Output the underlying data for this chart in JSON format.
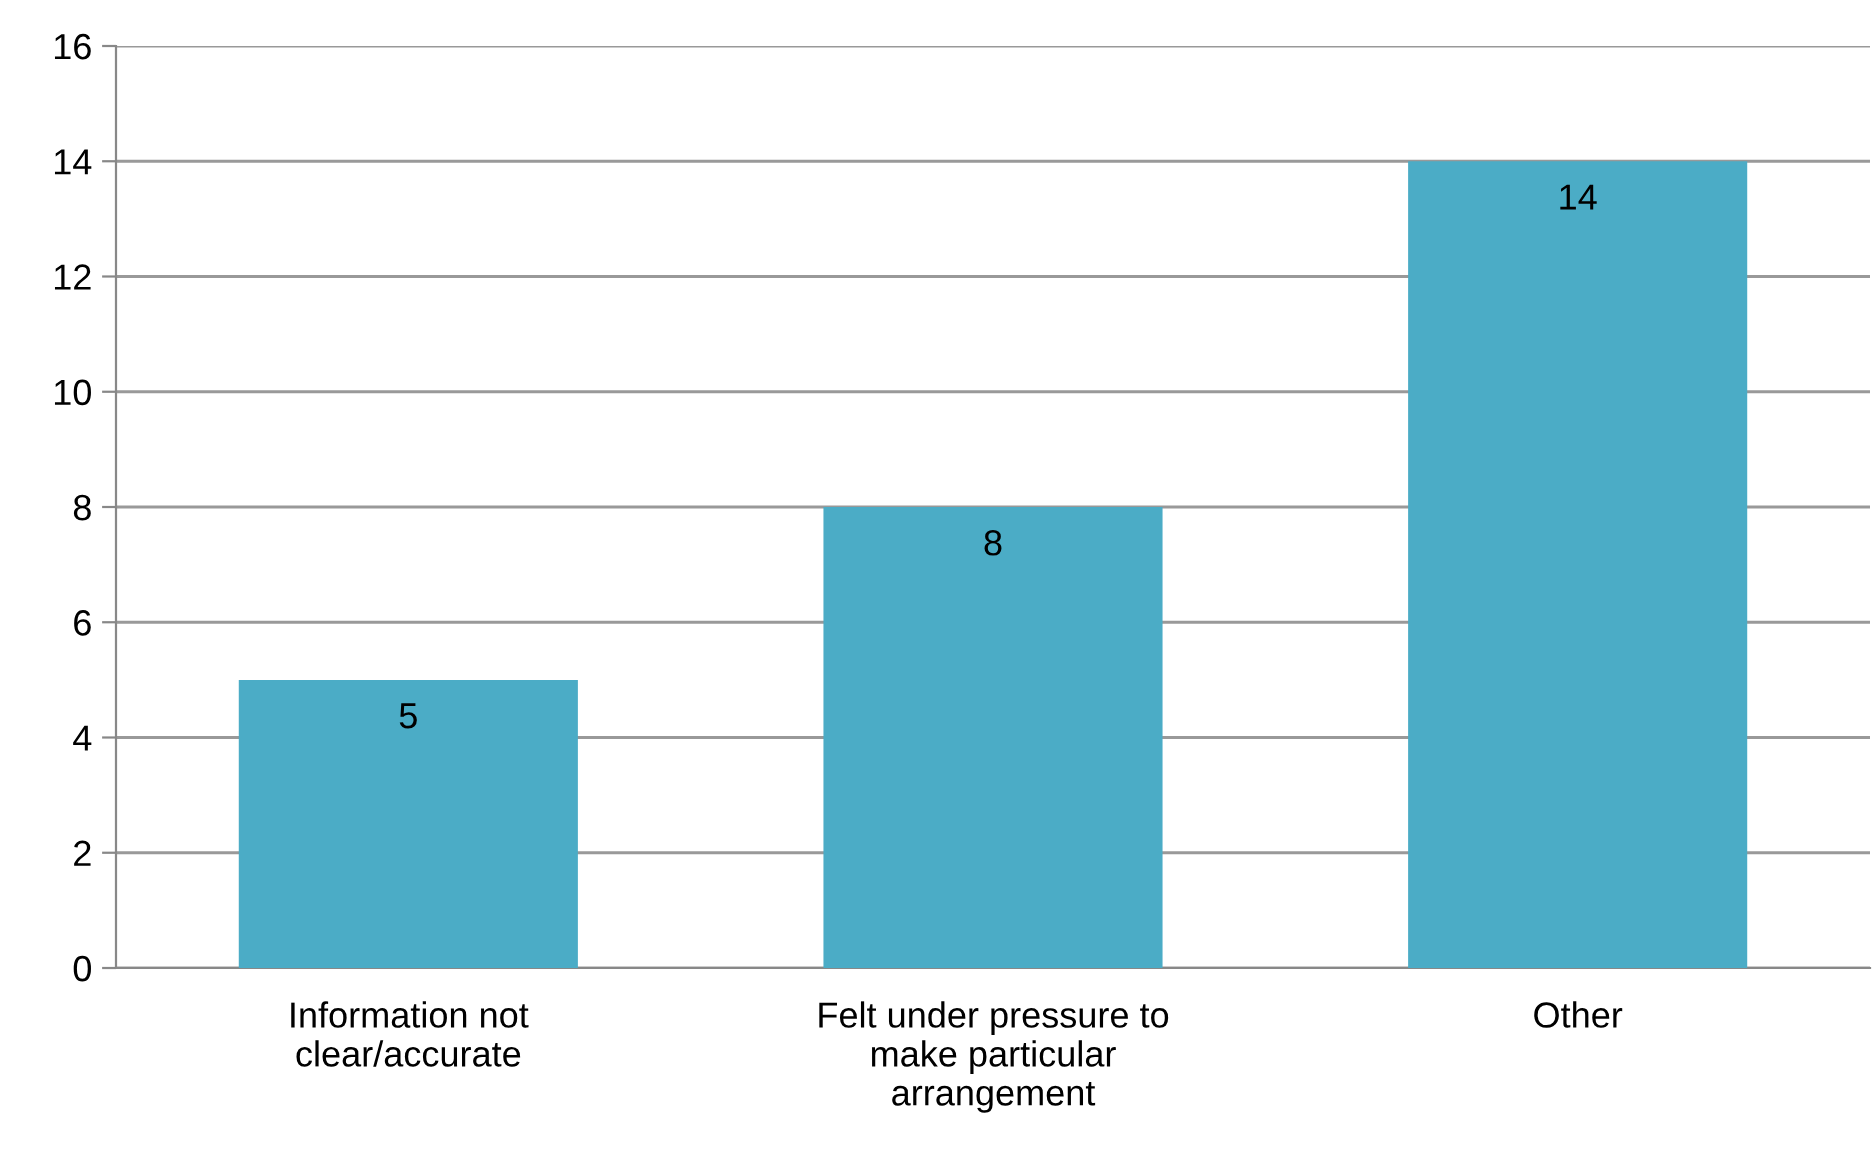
{
  "chart_data": {
    "type": "bar",
    "categories": [
      "Information not\nclear/accurate",
      "Felt under pressure to\nmake particular\narrangement",
      "Other"
    ],
    "values": [
      5,
      8,
      14
    ],
    "color": "#4bacc6",
    "ylim": [
      0,
      16
    ],
    "yticks": [
      0,
      2,
      4,
      6,
      8,
      10,
      12,
      14,
      16
    ],
    "grid": "y",
    "data_labels": true
  }
}
